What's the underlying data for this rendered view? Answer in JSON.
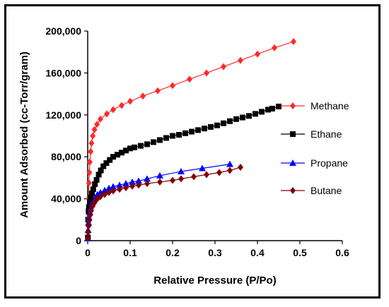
{
  "chart_data": {
    "type": "scatter",
    "xlabel": "Relative Pressure (P/Po)",
    "ylabel": "Amount Adsorbed (cc-Torr/gram)",
    "xlim": [
      0,
      0.6
    ],
    "ylim": [
      0,
      200000
    ],
    "x_ticks": [
      "0",
      "0.1",
      "0.2",
      "0.3",
      "0.4",
      "0.5",
      "0.6"
    ],
    "y_ticks": [
      "0",
      "40,000",
      "80,000",
      "120,000",
      "160,000",
      "200,000"
    ],
    "grid": false,
    "legend_position": "right",
    "series": [
      {
        "name": "Methane",
        "color": "#ff2a2a",
        "marker": "diamond",
        "x": [
          0.0005,
          0.001,
          0.002,
          0.003,
          0.004,
          0.005,
          0.007,
          0.009,
          0.012,
          0.016,
          0.022,
          0.03,
          0.045,
          0.06,
          0.08,
          0.1,
          0.13,
          0.165,
          0.2,
          0.24,
          0.28,
          0.32,
          0.36,
          0.4,
          0.44,
          0.485
        ],
        "y": [
          3000,
          20000,
          40000,
          55000,
          65000,
          75000,
          85000,
          93000,
          100000,
          106000,
          111000,
          116000,
          121000,
          125000,
          129000,
          133000,
          138000,
          143000,
          148000,
          154000,
          160000,
          166000,
          172000,
          178000,
          184000,
          190000
        ]
      },
      {
        "name": "Ethane",
        "color": "#000000",
        "marker": "square",
        "x": [
          0.0005,
          0.001,
          0.002,
          0.003,
          0.005,
          0.007,
          0.01,
          0.013,
          0.017,
          0.021,
          0.026,
          0.031,
          0.037,
          0.044,
          0.052,
          0.06,
          0.07,
          0.08,
          0.09,
          0.1,
          0.11,
          0.125,
          0.14,
          0.155,
          0.17,
          0.185,
          0.2,
          0.215,
          0.23,
          0.245,
          0.26,
          0.275,
          0.29,
          0.305,
          0.32,
          0.335,
          0.35,
          0.365,
          0.38,
          0.395,
          0.41,
          0.425,
          0.435,
          0.45
        ],
        "y": [
          3000,
          20000,
          28000,
          32000,
          37000,
          41000,
          45000,
          49000,
          54000,
          58000,
          63000,
          67000,
          71000,
          74000,
          77000,
          80000,
          82000,
          84000,
          86000,
          88000,
          89000,
          90500,
          92000,
          94000,
          96000,
          98000,
          100000,
          101000,
          102500,
          104000,
          105500,
          107000,
          108500,
          110000,
          112000,
          114000,
          116000,
          117500,
          119000,
          121000,
          123000,
          125000,
          126000,
          128000
        ]
      },
      {
        "name": "Propane",
        "color": "#0000ff",
        "marker": "triangle",
        "x": [
          0.0005,
          0.001,
          0.002,
          0.003,
          0.005,
          0.007,
          0.01,
          0.014,
          0.018,
          0.023,
          0.03,
          0.04,
          0.05,
          0.06,
          0.075,
          0.09,
          0.105,
          0.12,
          0.14,
          0.17,
          0.22,
          0.27,
          0.335
        ],
        "y": [
          2000,
          10000,
          17000,
          22000,
          27000,
          31000,
          35000,
          38000,
          41000,
          44000,
          46000,
          48000,
          50000,
          51500,
          53000,
          54500,
          56000,
          57000,
          59000,
          62000,
          66000,
          69000,
          73000
        ]
      },
      {
        "name": "Butane",
        "color": "#800000",
        "marker": "diamond",
        "x": [
          0.0005,
          0.001,
          0.002,
          0.003,
          0.005,
          0.007,
          0.01,
          0.014,
          0.018,
          0.023,
          0.03,
          0.04,
          0.05,
          0.06,
          0.075,
          0.09,
          0.105,
          0.12,
          0.14,
          0.17,
          0.2,
          0.22,
          0.25,
          0.28,
          0.31,
          0.335,
          0.36
        ],
        "y": [
          2000,
          8000,
          14000,
          19000,
          24000,
          28000,
          32000,
          35000,
          38000,
          40000,
          42000,
          44000,
          46000,
          47500,
          49000,
          50500,
          52000,
          53000,
          54500,
          56000,
          57500,
          59000,
          61000,
          63000,
          65000,
          67000,
          70000
        ]
      }
    ]
  }
}
